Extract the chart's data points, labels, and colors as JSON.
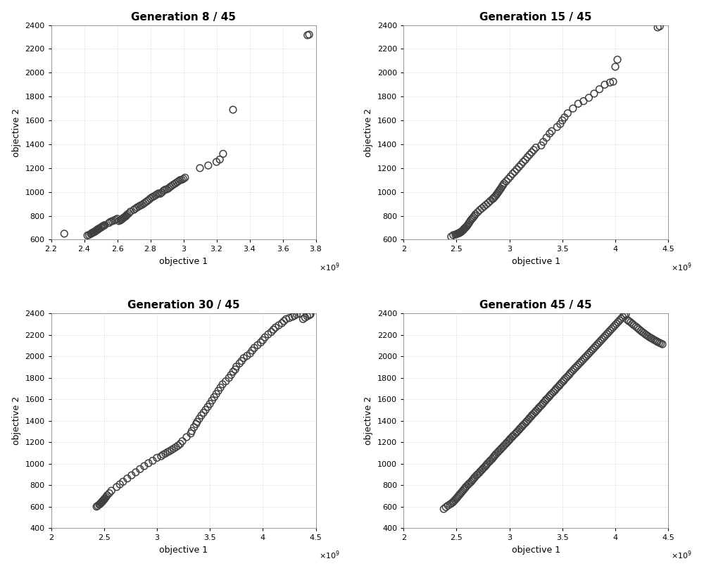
{
  "title_fontsize": 11,
  "label_fontsize": 9,
  "tick_fontsize": 8,
  "marker_size": 7,
  "marker_color": "none",
  "marker_edge_color": "#404040",
  "marker_edge_width": 1.1,
  "background_color": "#ffffff",
  "grid_color": "#d0d0d0",
  "subplots": [
    {
      "title": "Generation 8 / 45",
      "xlim": [
        2200000000.0,
        3800000000.0
      ],
      "ylim": [
        600,
        2400
      ],
      "xticks": [
        2200000000.0,
        2400000000.0,
        2600000000.0,
        2800000000.0,
        3000000000.0,
        3200000000.0,
        3400000000.0,
        3600000000.0,
        3800000000.0
      ],
      "yticks": [
        600,
        800,
        1000,
        1200,
        1400,
        1600,
        1800,
        2000,
        2200,
        2400
      ],
      "x": [
        2280000000.0,
        2420000000.0,
        2430000000.0,
        2440000000.0,
        2445000000.0,
        2450000000.0,
        2455000000.0,
        2460000000.0,
        2462000000.0,
        2465000000.0,
        2470000000.0,
        2472000000.0,
        2475000000.0,
        2478000000.0,
        2480000000.0,
        2483000000.0,
        2485000000.0,
        2490000000.0,
        2492000000.0,
        2500000000.0,
        2505000000.0,
        2510000000.0,
        2515000000.0,
        2520000000.0,
        2525000000.0,
        2550000000.0,
        2560000000.0,
        2570000000.0,
        2580000000.0,
        2590000000.0,
        2600000000.0,
        2610000000.0,
        2620000000.0,
        2625000000.0,
        2630000000.0,
        2635000000.0,
        2640000000.0,
        2645000000.0,
        2650000000.0,
        2655000000.0,
        2660000000.0,
        2670000000.0,
        2680000000.0,
        2700000000.0,
        2710000000.0,
        2720000000.0,
        2730000000.0,
        2740000000.0,
        2750000000.0,
        2760000000.0,
        2770000000.0,
        2780000000.0,
        2790000000.0,
        2800000000.0,
        2810000000.0,
        2820000000.0,
        2830000000.0,
        2840000000.0,
        2850000000.0,
        2860000000.0,
        2870000000.0,
        2880000000.0,
        2890000000.0,
        2900000000.0,
        2910000000.0,
        2920000000.0,
        2930000000.0,
        2940000000.0,
        2950000000.0,
        2960000000.0,
        2970000000.0,
        2980000000.0,
        2990000000.0,
        3000000000.0,
        3010000000.0,
        3100000000.0,
        3150000000.0,
        3200000000.0,
        3220000000.0,
        3240000000.0,
        3300000000.0,
        3750000000.0,
        3760000000.0
      ],
      "y": [
        650,
        635,
        640,
        648,
        652,
        658,
        660,
        663,
        666,
        668,
        672,
        675,
        678,
        680,
        683,
        686,
        688,
        692,
        695,
        700,
        705,
        710,
        715,
        718,
        722,
        740,
        750,
        755,
        760,
        768,
        775,
        756,
        762,
        768,
        773,
        779,
        785,
        790,
        795,
        800,
        810,
        820,
        835,
        850,
        860,
        870,
        878,
        886,
        892,
        902,
        912,
        922,
        932,
        945,
        955,
        962,
        970,
        980,
        988,
        985,
        996,
        1010,
        1020,
        1022,
        1030,
        1042,
        1052,
        1062,
        1070,
        1080,
        1090,
        1100,
        1102,
        1110,
        1120,
        1200,
        1222,
        1252,
        1272,
        1320,
        1690,
        2315,
        2320
      ]
    },
    {
      "title": "Generation 15 / 45",
      "xlim": [
        2000000000.0,
        4500000000.0
      ],
      "ylim": [
        600,
        2400
      ],
      "xticks": [
        2000000000.0,
        2500000000.0,
        3000000000.0,
        3500000000.0,
        4000000000.0,
        4500000000.0
      ],
      "yticks": [
        600,
        800,
        1000,
        1200,
        1400,
        1600,
        1800,
        2000,
        2200,
        2400
      ],
      "x": [
        2450000000.0,
        2470000000.0,
        2490000000.0,
        2500000000.0,
        2510000000.0,
        2520000000.0,
        2525000000.0,
        2530000000.0,
        2535000000.0,
        2540000000.0,
        2545000000.0,
        2550000000.0,
        2560000000.0,
        2565000000.0,
        2570000000.0,
        2575000000.0,
        2580000000.0,
        2590000000.0,
        2600000000.0,
        2610000000.0,
        2620000000.0,
        2630000000.0,
        2640000000.0,
        2650000000.0,
        2660000000.0,
        2670000000.0,
        2680000000.0,
        2700000000.0,
        2720000000.0,
        2740000000.0,
        2760000000.0,
        2780000000.0,
        2800000000.0,
        2820000000.0,
        2840000000.0,
        2850000000.0,
        2860000000.0,
        2870000000.0,
        2880000000.0,
        2890000000.0,
        2900000000.0,
        2910000000.0,
        2920000000.0,
        2930000000.0,
        2940000000.0,
        2950000000.0,
        2970000000.0,
        2990000000.0,
        3010000000.0,
        3030000000.0,
        3050000000.0,
        3070000000.0,
        3090000000.0,
        3110000000.0,
        3130000000.0,
        3150000000.0,
        3170000000.0,
        3190000000.0,
        3210000000.0,
        3230000000.0,
        3250000000.0,
        3300000000.0,
        3320000000.0,
        3350000000.0,
        3380000000.0,
        3400000000.0,
        3450000000.0,
        3480000000.0,
        3500000000.0,
        3520000000.0,
        3550000000.0,
        3600000000.0,
        3650000000.0,
        3700000000.0,
        3750000000.0,
        3800000000.0,
        3850000000.0,
        3900000000.0,
        3950000000.0,
        3980000000.0,
        4000000000.0,
        4020000000.0,
        4400000000.0,
        4420000000.0
      ],
      "y": [
        625,
        638,
        642,
        646,
        650,
        653,
        655,
        658,
        660,
        663,
        666,
        670,
        677,
        682,
        688,
        692,
        698,
        705,
        715,
        728,
        742,
        756,
        768,
        778,
        788,
        800,
        813,
        830,
        848,
        863,
        878,
        893,
        908,
        925,
        940,
        948,
        958,
        968,
        980,
        992,
        1005,
        1018,
        1030,
        1045,
        1058,
        1072,
        1090,
        1110,
        1130,
        1152,
        1170,
        1190,
        1210,
        1230,
        1252,
        1270,
        1292,
        1312,
        1332,
        1352,
        1372,
        1390,
        1420,
        1455,
        1490,
        1510,
        1545,
        1570,
        1600,
        1625,
        1660,
        1700,
        1740,
        1762,
        1790,
        1825,
        1862,
        1900,
        1918,
        1925,
        2050,
        2110,
        2380,
        2390
      ]
    },
    {
      "title": "Generation 30 / 45",
      "xlim": [
        2000000000.0,
        4500000000.0
      ],
      "ylim": [
        400,
        2400
      ],
      "xticks": [
        2000000000.0,
        2500000000.0,
        3000000000.0,
        3500000000.0,
        4000000000.0,
        4500000000.0
      ],
      "yticks": [
        400,
        600,
        800,
        1000,
        1200,
        1400,
        1600,
        1800,
        2000,
        2200,
        2400
      ],
      "x": [
        2430000000.0,
        2440000000.0,
        2455000000.0,
        2462000000.0,
        2470000000.0,
        2475000000.0,
        2480000000.0,
        2485000000.0,
        2490000000.0,
        2495000000.0,
        2500000000.0,
        2505000000.0,
        2510000000.0,
        2520000000.0,
        2530000000.0,
        2550000000.0,
        2570000000.0,
        2620000000.0,
        2650000000.0,
        2680000000.0,
        2720000000.0,
        2760000000.0,
        2800000000.0,
        2840000000.0,
        2880000000.0,
        2920000000.0,
        2960000000.0,
        3000000000.0,
        3040000000.0,
        3060000000.0,
        3080000000.0,
        3100000000.0,
        3120000000.0,
        3140000000.0,
        3160000000.0,
        3180000000.0,
        3200000000.0,
        3220000000.0,
        3240000000.0,
        3280000000.0,
        3320000000.0,
        3330000000.0,
        3350000000.0,
        3370000000.0,
        3380000000.0,
        3400000000.0,
        3420000000.0,
        3440000000.0,
        3460000000.0,
        3480000000.0,
        3500000000.0,
        3520000000.0,
        3540000000.0,
        3560000000.0,
        3580000000.0,
        3600000000.0,
        3620000000.0,
        3650000000.0,
        3680000000.0,
        3700000000.0,
        3720000000.0,
        3740000000.0,
        3750000000.0,
        3780000000.0,
        3800000000.0,
        3820000000.0,
        3850000000.0,
        3880000000.0,
        3900000000.0,
        3920000000.0,
        3950000000.0,
        3980000000.0,
        4000000000.0,
        4020000000.0,
        4050000000.0,
        4080000000.0,
        4100000000.0,
        4120000000.0,
        4150000000.0,
        4180000000.0,
        4200000000.0,
        4220000000.0,
        4250000000.0,
        4280000000.0,
        4300000000.0,
        4320000000.0,
        4350000000.0,
        4380000000.0,
        4400000000.0,
        4420000000.0,
        4440000000.0,
        4450000000.0
      ],
      "y": [
        600,
        608,
        618,
        624,
        632,
        638,
        643,
        648,
        654,
        660,
        665,
        672,
        678,
        690,
        705,
        725,
        748,
        783,
        808,
        832,
        862,
        892,
        920,
        950,
        978,
        1005,
        1028,
        1055,
        1070,
        1085,
        1095,
        1108,
        1118,
        1130,
        1142,
        1155,
        1168,
        1185,
        1210,
        1248,
        1282,
        1305,
        1340,
        1370,
        1390,
        1420,
        1450,
        1475,
        1502,
        1530,
        1558,
        1590,
        1620,
        1650,
        1680,
        1710,
        1740,
        1768,
        1800,
        1828,
        1858,
        1878,
        1905,
        1935,
        1958,
        1985,
        2005,
        2028,
        2055,
        2080,
        2105,
        2130,
        2152,
        2178,
        2205,
        2228,
        2250,
        2270,
        2290,
        2310,
        2330,
        2348,
        2358,
        2370,
        2380,
        2392,
        2398,
        2348,
        2362,
        2374,
        2385,
        2392
      ]
    },
    {
      "title": "Generation 45 / 45",
      "xlim": [
        2000000000.0,
        4500000000.0
      ],
      "ylim": [
        400,
        2400
      ],
      "xticks": [
        2000000000.0,
        2500000000.0,
        3000000000.0,
        3500000000.0,
        4000000000.0,
        4500000000.0
      ],
      "yticks": [
        400,
        600,
        800,
        1000,
        1200,
        1400,
        1600,
        1800,
        2000,
        2200,
        2400
      ],
      "x": [
        2380000000.0,
        2400000000.0,
        2420000000.0,
        2440000000.0,
        2455000000.0,
        2465000000.0,
        2475000000.0,
        2485000000.0,
        2495000000.0,
        2505000000.0,
        2515000000.0,
        2525000000.0,
        2535000000.0,
        2545000000.0,
        2555000000.0,
        2565000000.0,
        2575000000.0,
        2585000000.0,
        2595000000.0,
        2610000000.0,
        2620000000.0,
        2635000000.0,
        2645000000.0,
        2655000000.0,
        2665000000.0,
        2675000000.0,
        2690000000.0,
        2700000000.0,
        2715000000.0,
        2725000000.0,
        2740000000.0,
        2750000000.0,
        2765000000.0,
        2775000000.0,
        2785000000.0,
        2795000000.0,
        2810000000.0,
        2820000000.0,
        2835000000.0,
        2845000000.0,
        2855000000.0,
        2865000000.0,
        2875000000.0,
        2890000000.0,
        2900000000.0,
        2915000000.0,
        2925000000.0,
        2940000000.0,
        2950000000.0,
        2965000000.0,
        2975000000.0,
        2990000000.0,
        3000000000.0,
        3010000000.0,
        3025000000.0,
        3035000000.0,
        3050000000.0,
        3065000000.0,
        3075000000.0,
        3090000000.0,
        3100000000.0,
        3115000000.0,
        3125000000.0,
        3140000000.0,
        3155000000.0,
        3165000000.0,
        3180000000.0,
        3190000000.0,
        3205000000.0,
        3215000000.0,
        3230000000.0,
        3245000000.0,
        3255000000.0,
        3270000000.0,
        3280000000.0,
        3295000000.0,
        3310000000.0,
        3320000000.0,
        3335000000.0,
        3345000000.0,
        3360000000.0,
        3375000000.0,
        3385000000.0,
        3400000000.0,
        3415000000.0,
        3430000000.0,
        3440000000.0,
        3455000000.0,
        3470000000.0,
        3480000000.0,
        3495000000.0,
        3510000000.0,
        3520000000.0,
        3535000000.0,
        3550000000.0,
        3565000000.0,
        3575000000.0,
        3590000000.0,
        3605000000.0,
        3620000000.0,
        3635000000.0,
        3650000000.0,
        3665000000.0,
        3680000000.0,
        3695000000.0,
        3710000000.0,
        3725000000.0,
        3740000000.0,
        3755000000.0,
        3770000000.0,
        3785000000.0,
        3800000000.0,
        3815000000.0,
        3830000000.0,
        3845000000.0,
        3860000000.0,
        3875000000.0,
        3890000000.0,
        3905000000.0,
        3920000000.0,
        3935000000.0,
        3950000000.0,
        3965000000.0,
        3980000000.0,
        3995000000.0,
        4010000000.0,
        4025000000.0,
        4040000000.0,
        4055000000.0,
        4070000000.0,
        4085000000.0,
        4100000000.0,
        4115000000.0,
        4130000000.0,
        4145000000.0,
        4160000000.0,
        4175000000.0,
        4195000000.0,
        4210000000.0,
        4225000000.0,
        4240000000.0,
        4255000000.0,
        4270000000.0,
        4285000000.0,
        4300000000.0,
        4315000000.0,
        4330000000.0,
        4345000000.0,
        4360000000.0,
        4375000000.0,
        4390000000.0,
        4400000000.0,
        4415000000.0,
        4430000000.0,
        4445000000.0
      ],
      "y": [
        578,
        595,
        610,
        622,
        632,
        640,
        650,
        660,
        672,
        683,
        695,
        707,
        719,
        730,
        742,
        754,
        766,
        778,
        790,
        805,
        816,
        828,
        840,
        852,
        864,
        876,
        892,
        902,
        915,
        928,
        942,
        955,
        968,
        980,
        992,
        1004,
        1018,
        1030,
        1043,
        1055,
        1068,
        1080,
        1092,
        1106,
        1118,
        1132,
        1144,
        1158,
        1170,
        1184,
        1196,
        1210,
        1222,
        1235,
        1248,
        1260,
        1274,
        1288,
        1300,
        1315,
        1328,
        1342,
        1355,
        1370,
        1384,
        1397,
        1412,
        1426,
        1440,
        1454,
        1468,
        1483,
        1496,
        1510,
        1524,
        1538,
        1553,
        1567,
        1582,
        1596,
        1610,
        1625,
        1639,
        1654,
        1668,
        1683,
        1697,
        1712,
        1726,
        1740,
        1756,
        1770,
        1785,
        1800,
        1815,
        1830,
        1845,
        1860,
        1876,
        1892,
        1907,
        1922,
        1938,
        1953,
        1969,
        1985,
        2000,
        2016,
        2032,
        2048,
        2064,
        2080,
        2096,
        2112,
        2128,
        2144,
        2160,
        2176,
        2192,
        2208,
        2224,
        2240,
        2256,
        2272,
        2288,
        2304,
        2320,
        2336,
        2352,
        2368,
        2384,
        2395,
        2340,
        2328,
        2318,
        2305,
        2292,
        2278,
        2265,
        2252,
        2240,
        2228,
        2218,
        2205,
        2195,
        2185,
        2175,
        2168,
        2158,
        2150,
        2142,
        2135,
        2128,
        2121,
        2114
      ]
    }
  ]
}
